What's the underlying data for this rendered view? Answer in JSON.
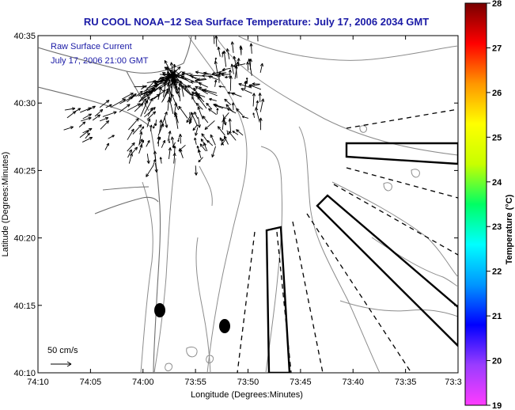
{
  "title": "RU COOL  NOAA−12  Sea Surface Temperature:  July 17, 2006 2034 GMT",
  "x_axis": {
    "label": "Longitude (Degrees:Minutes)",
    "ticks": [
      "74:10",
      "74:05",
      "74:00",
      "73:55",
      "73:50",
      "73:45",
      "73:40",
      "73:35",
      "73:3"
    ]
  },
  "y_axis": {
    "label": "Latitude (Degrees:Minutes)",
    "ticks": [
      "40:10",
      "40:15",
      "40:20",
      "40:25",
      "40:30",
      "40:35"
    ]
  },
  "colorbar": {
    "label": "Temperature (°C)",
    "ticks": [
      "19",
      "20",
      "21",
      "22",
      "23",
      "24",
      "25",
      "26",
      "27",
      "28"
    ],
    "colors": [
      "#ff3cff",
      "#9a3cff",
      "#0000ff",
      "#0096ff",
      "#00ffff",
      "#00ff64",
      "#c8ff00",
      "#ffff00",
      "#ff9600",
      "#ff0000",
      "#780000"
    ]
  },
  "annotation": {
    "line1": "Raw Surface Current",
    "line2": "July 17, 2006 21:00 GMT"
  },
  "scale": {
    "label": "50 cm/s"
  },
  "colors": {
    "title": "#1a1aa6",
    "contour": "#888888",
    "coast": "#666666",
    "vectors": "#000000"
  }
}
